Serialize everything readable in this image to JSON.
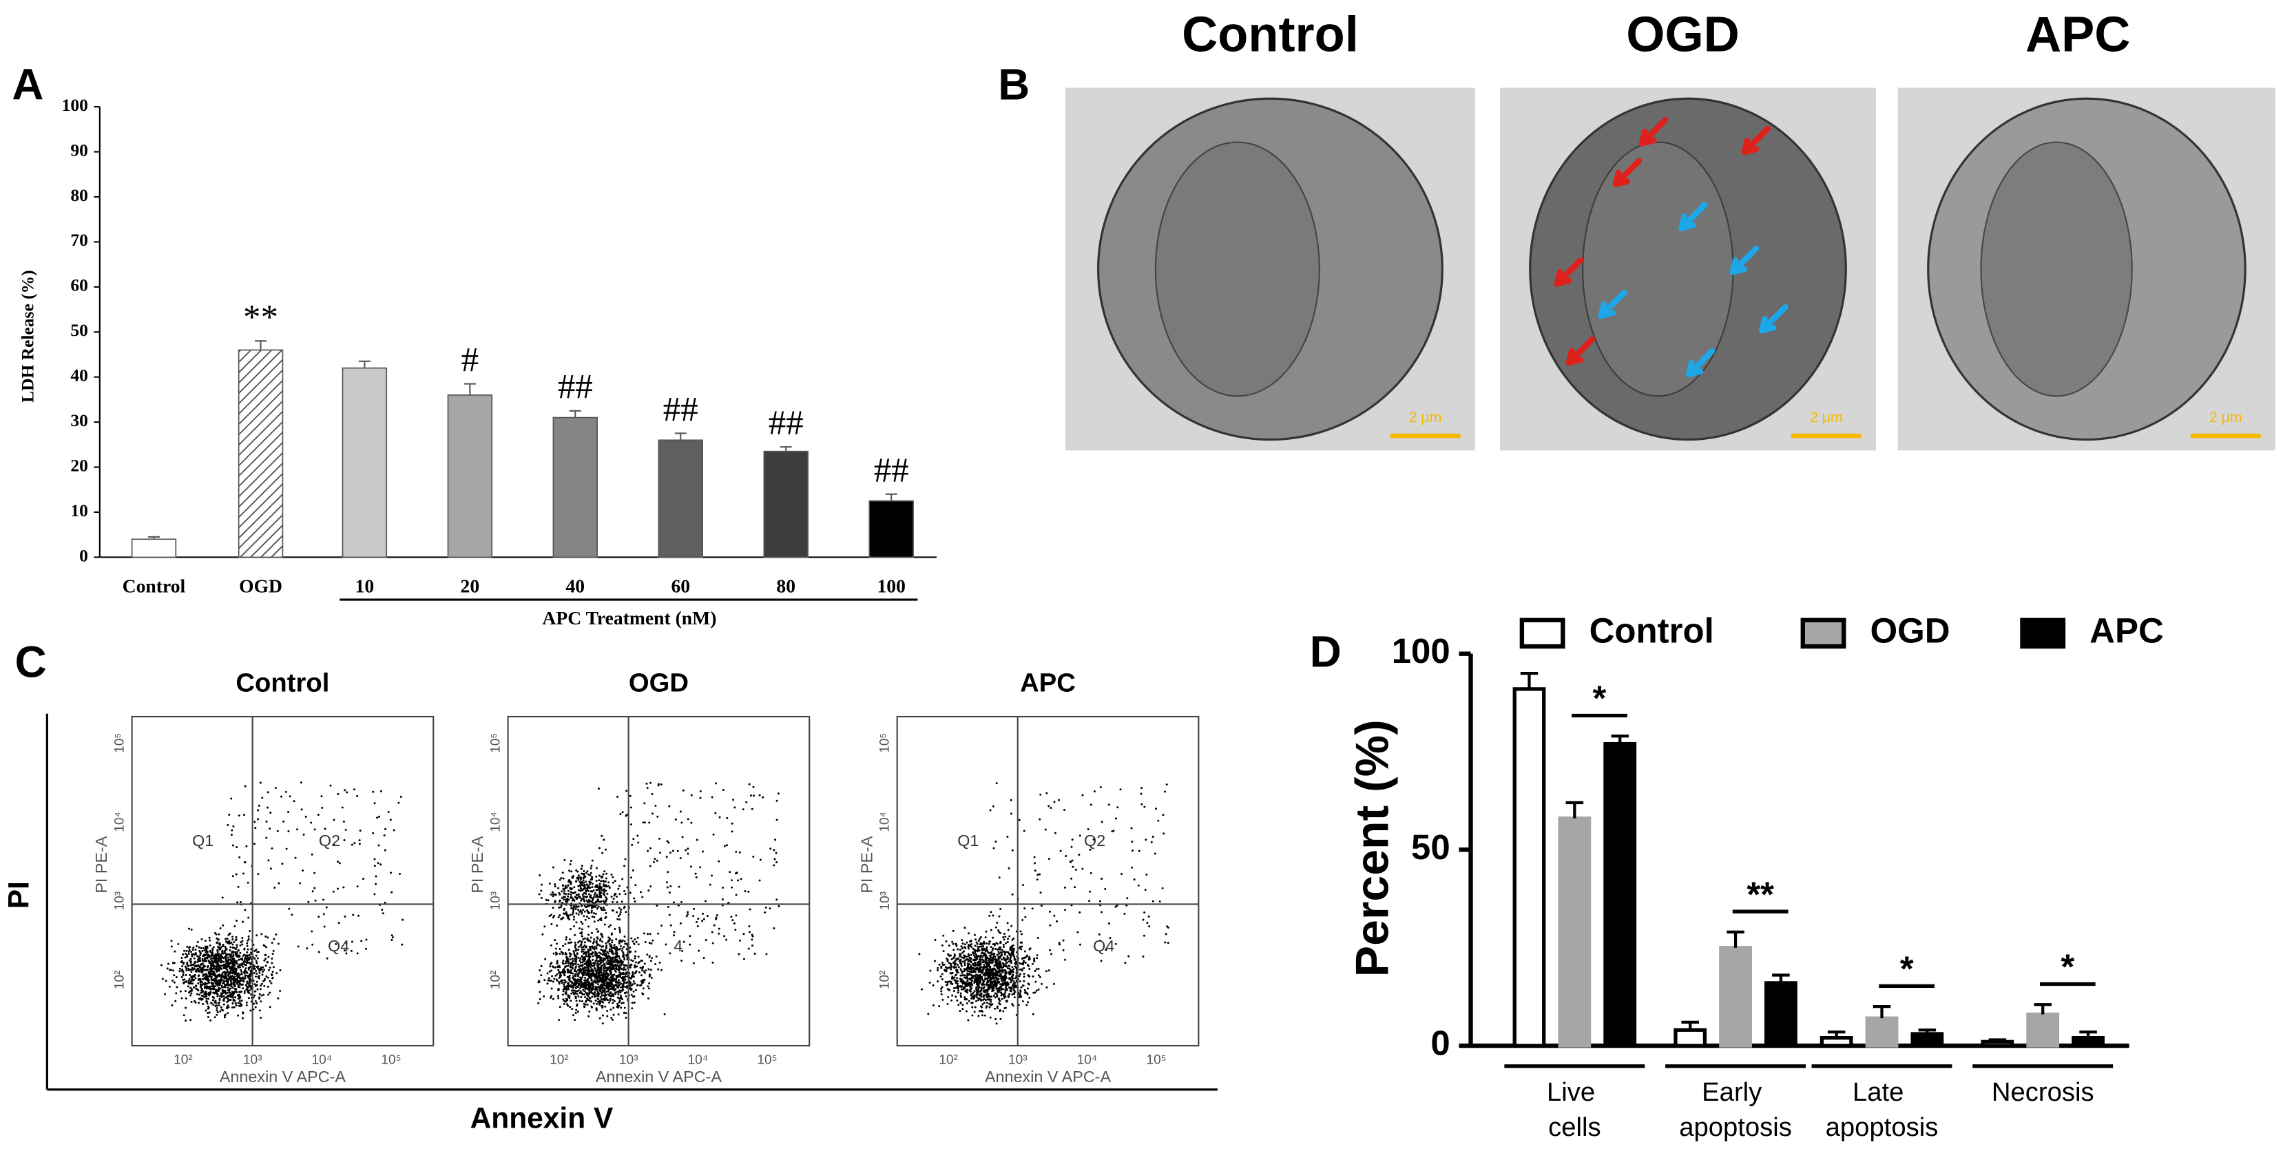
{
  "panel_labels": [
    "A",
    "B",
    "C",
    "D"
  ],
  "chart_data": [
    {
      "type": "bar",
      "y_label": "LDH Release (%)",
      "categories": [
        "Control",
        "OGD",
        "10",
        "20",
        "40",
        "60",
        "80",
        "100"
      ],
      "values": [
        4,
        46,
        42,
        36,
        31,
        26,
        23.5,
        12.5
      ],
      "errors": [
        0.5,
        2,
        1.5,
        2.5,
        1.5,
        1.5,
        1,
        1.5
      ],
      "colors": [
        "#ffffff",
        "#ffffff",
        "#c8c8c8",
        "#a6a6a6",
        "#858585",
        "#5f5f5f",
        "#3d3d3d",
        "#000000"
      ],
      "hatch": [
        false,
        true,
        false,
        false,
        false,
        false,
        false,
        false
      ],
      "annotations": [
        null,
        "**",
        null,
        "#",
        "##",
        "##",
        "##",
        "##"
      ],
      "group_label": "APC Treatment (nM)",
      "ylim": [
        0,
        100
      ],
      "yticks": [
        0,
        10,
        20,
        30,
        40,
        50,
        60,
        70,
        80,
        90,
        100
      ]
    },
    {
      "type": "grouped_bar",
      "y_label": "Percent (%)",
      "categories": [
        "Live cells",
        "Early apoptosis",
        "Late apoptosis",
        "Necrosis"
      ],
      "series": [
        {
          "name": "Control",
          "color": "#ffffff",
          "values": [
            91,
            4,
            2,
            1
          ],
          "errors": [
            4,
            2,
            1.5,
            0.5
          ]
        },
        {
          "name": "OGD",
          "color": "#a6a6a6",
          "values": [
            58,
            25,
            7,
            8
          ],
          "errors": [
            4,
            4,
            3,
            2.5
          ]
        },
        {
          "name": "APC",
          "color": "#000000",
          "values": [
            77,
            16,
            3,
            2
          ],
          "errors": [
            2,
            2,
            1,
            1.5
          ]
        }
      ],
      "significance": [
        "*",
        "**",
        "*",
        "*"
      ],
      "ylim": [
        0,
        100
      ],
      "yticks": [
        0,
        50,
        100
      ]
    }
  ],
  "micrographs": {
    "titles": [
      "Control",
      "OGD",
      "APC"
    ],
    "scale_bar": "2 μm"
  },
  "flow_cytometry": {
    "x_axis_label": "Annexin V",
    "y_axis_label": "PI",
    "plot_x_label": "Annexin V APC-A",
    "plot_y_label": "PI PE-A",
    "x_tick_labels": [
      "10²",
      "10³",
      "10⁴",
      "10⁵"
    ],
    "y_tick_labels": [
      "10²",
      "10³",
      "10⁴",
      "10⁵"
    ],
    "plots": [
      {
        "title": "Control",
        "quadrants": [
          "Q1",
          "Q2",
          "Q4"
        ]
      },
      {
        "title": "OGD",
        "quadrants": [
          "4"
        ]
      },
      {
        "title": "APC",
        "quadrants": [
          "Q1",
          "Q2",
          "Q4"
        ]
      }
    ]
  }
}
